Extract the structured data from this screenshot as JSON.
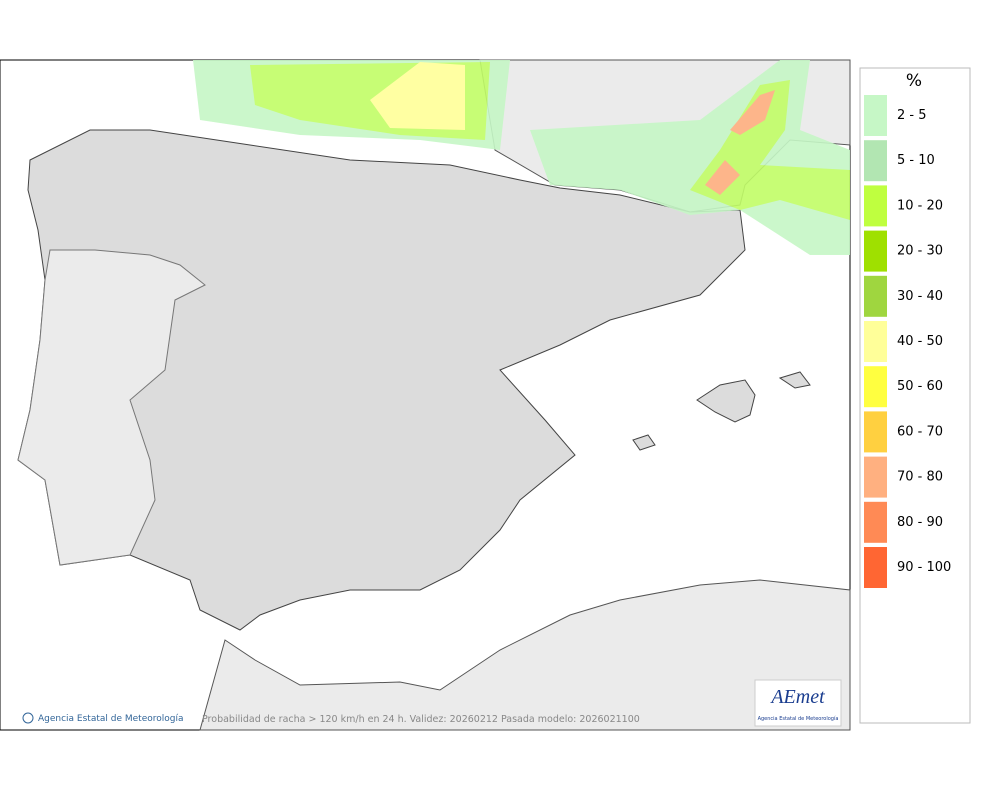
{
  "legend": {
    "title": "%",
    "items": [
      {
        "label": "2 - 5",
        "color": "#c6f7c6"
      },
      {
        "label": "5 - 10",
        "color": "#b2e6b2"
      },
      {
        "label": "10 - 20",
        "color": "#bfff3f"
      },
      {
        "label": "20 - 30",
        "color": "#9fe000"
      },
      {
        "label": "30 - 40",
        "color": "#9fd63f"
      },
      {
        "label": "40 - 50",
        "color": "#ffff99"
      },
      {
        "label": "50 - 60",
        "color": "#ffff40"
      },
      {
        "label": "60 - 70",
        "color": "#ffd040"
      },
      {
        "label": "70 - 80",
        "color": "#ffb080"
      },
      {
        "label": "80 - 90",
        "color": "#ff8a55"
      },
      {
        "label": "90 - 100",
        "color": "#ff6633"
      }
    ]
  },
  "footer": {
    "copyright": "Agencia Estatal de Meteorología",
    "caption": "Probabilidad de racha > 120 km/h en 24 h. Validez: 20260212 Pasada modelo: 2026021100"
  },
  "logo": {
    "name": "AEmet",
    "subtitle": "Agencia Estatal de Meteorología"
  }
}
